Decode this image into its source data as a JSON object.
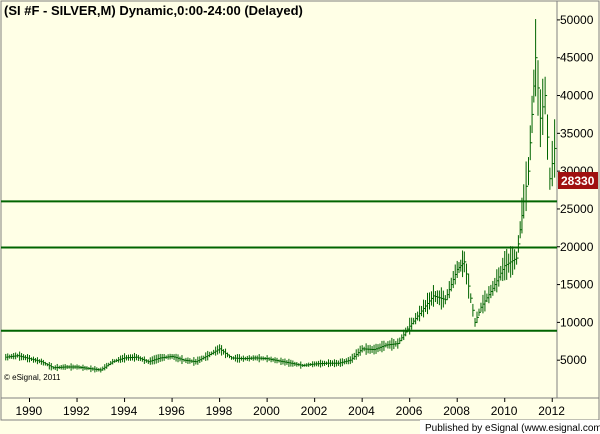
{
  "chart_data": {
    "type": "bar",
    "title": "(SI #F - SILVER,M) Dynamic,0:00-24:00 (Delayed)",
    "y_ticks": [
      "50000",
      "45000",
      "40000",
      "35000",
      "30000",
      "25000",
      "20000",
      "15000",
      "10000",
      "5000"
    ],
    "x_ticks": [
      "1990",
      "1992",
      "1994",
      "1996",
      "1998",
      "2000",
      "2002",
      "2004",
      "2006",
      "2008",
      "2010",
      "2012"
    ],
    "ylim": [
      0,
      52500
    ],
    "xlim": [
      1988.8,
      2012.2
    ],
    "last_value": "28330",
    "horizontal_lines": [
      26000,
      19900,
      8900
    ],
    "grid": false,
    "series": [
      {
        "values": [
          [
            1989.0,
            5400
          ],
          [
            1989.5,
            5600
          ],
          [
            1990.0,
            5200
          ],
          [
            1990.5,
            4800
          ],
          [
            1991.0,
            4000
          ],
          [
            1991.5,
            4100
          ],
          [
            1992.0,
            4100
          ],
          [
            1992.5,
            3900
          ],
          [
            1993.0,
            3700
          ],
          [
            1993.5,
            4800
          ],
          [
            1994.0,
            5300
          ],
          [
            1994.5,
            5400
          ],
          [
            1995.0,
            4800
          ],
          [
            1995.5,
            5300
          ],
          [
            1996.0,
            5500
          ],
          [
            1996.5,
            5000
          ],
          [
            1997.0,
            4800
          ],
          [
            1997.5,
            5600
          ],
          [
            1998.0,
            6500
          ],
          [
            1998.5,
            5300
          ],
          [
            1999.0,
            5200
          ],
          [
            1999.5,
            5300
          ],
          [
            2000.0,
            5200
          ],
          [
            2000.5,
            4900
          ],
          [
            2001.0,
            4600
          ],
          [
            2001.5,
            4300
          ],
          [
            2002.0,
            4500
          ],
          [
            2002.5,
            4600
          ],
          [
            2003.0,
            4600
          ],
          [
            2003.5,
            5000
          ],
          [
            2004.0,
            6500
          ],
          [
            2004.5,
            6400
          ],
          [
            2005.0,
            7000
          ],
          [
            2005.5,
            7200
          ],
          [
            2006.0,
            9500
          ],
          [
            2006.5,
            11500
          ],
          [
            2007.0,
            13500
          ],
          [
            2007.5,
            13000
          ],
          [
            2008.0,
            17000
          ],
          [
            2008.3,
            18000
          ],
          [
            2008.75,
            10000
          ],
          [
            2009.0,
            12000
          ],
          [
            2009.5,
            14500
          ],
          [
            2010.0,
            17500
          ],
          [
            2010.5,
            18500
          ],
          [
            2010.8,
            26000
          ],
          [
            2011.0,
            30000
          ],
          [
            2011.3,
            45000
          ],
          [
            2011.5,
            37000
          ],
          [
            2011.7,
            40000
          ],
          [
            2011.9,
            29000
          ],
          [
            2012.1,
            33000
          ],
          [
            2012.4,
            35000
          ],
          [
            2012.6,
            30000
          ],
          [
            2012.8,
            28330
          ]
        ]
      }
    ]
  },
  "watermark": "© eSignal, 2011",
  "footer": "Published by eSignal (www.esignal.com)"
}
